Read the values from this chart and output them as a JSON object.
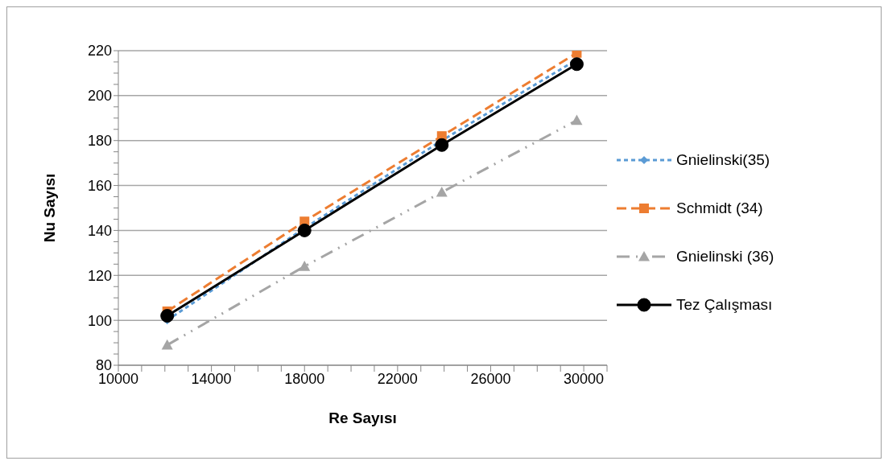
{
  "chart_data": {
    "type": "line",
    "xlabel": "Re Sayısı",
    "ylabel": "Nu  Sayısı",
    "xlim": [
      10000,
      31000
    ],
    "xticks": [
      10000,
      {
        "value": 11000,
        "label": null
      },
      {
        "value": 12000,
        "label": null
      },
      {
        "value": 13000,
        "label": null
      },
      14000,
      {
        "value": 15000,
        "label": null
      },
      {
        "value": 16000,
        "label": null
      },
      {
        "value": 17000,
        "label": null
      },
      18000,
      {
        "value": 19000,
        "label": null
      },
      {
        "value": 20000,
        "label": null
      },
      {
        "value": 21000,
        "label": null
      },
      22000,
      {
        "value": 23000,
        "label": null
      },
      {
        "value": 24000,
        "label": null
      },
      {
        "value": 25000,
        "label": null
      },
      26000,
      {
        "value": 27000,
        "label": null
      },
      {
        "value": 28000,
        "label": null
      },
      {
        "value": 29000,
        "label": null
      },
      30000,
      {
        "value": 31000,
        "label": null
      }
    ],
    "ylim": [
      80,
      220
    ],
    "yticks": [
      80,
      {
        "value": 85,
        "label": null
      },
      {
        "value": 90,
        "label": null
      },
      {
        "value": 95,
        "label": null
      },
      100,
      {
        "value": 105,
        "label": null
      },
      {
        "value": 110,
        "label": null
      },
      {
        "value": 115,
        "label": null
      },
      120,
      {
        "value": 125,
        "label": null
      },
      {
        "value": 130,
        "label": null
      },
      {
        "value": 135,
        "label": null
      },
      140,
      {
        "value": 145,
        "label": null
      },
      {
        "value": 150,
        "label": null
      },
      {
        "value": 155,
        "label": null
      },
      160,
      {
        "value": 165,
        "label": null
      },
      {
        "value": 170,
        "label": null
      },
      {
        "value": 175,
        "label": null
      },
      180,
      {
        "value": 185,
        "label": null
      },
      {
        "value": 190,
        "label": null
      },
      {
        "value": 195,
        "label": null
      },
      200,
      {
        "value": 205,
        "label": null
      },
      {
        "value": 210,
        "label": null
      },
      {
        "value": 215,
        "label": null
      },
      220
    ],
    "grid": "y",
    "legend": "right",
    "x": [
      12100,
      18000,
      23900,
      29700
    ],
    "series": [
      {
        "name": "Gnielinski(35)",
        "color": "#5b9bd5",
        "values": [
          100,
          141,
          180,
          216
        ],
        "marker": "diamond",
        "line_style": "dotted"
      },
      {
        "name": "Schmidt (34)",
        "color": "#ed7d31",
        "values": [
          104,
          144,
          182,
          219
        ],
        "marker": "square",
        "line_style": "dashed"
      },
      {
        "name": "Gnielinski (36)",
        "color": "#a5a5a5",
        "values": [
          89,
          124,
          157,
          189
        ],
        "marker": "triangle",
        "line_style": "dashdot"
      },
      {
        "name": "Tez Çalışması",
        "color": "#000000",
        "values": [
          102,
          140,
          178,
          214
        ],
        "marker": "circle",
        "line_style": "solid"
      }
    ]
  }
}
